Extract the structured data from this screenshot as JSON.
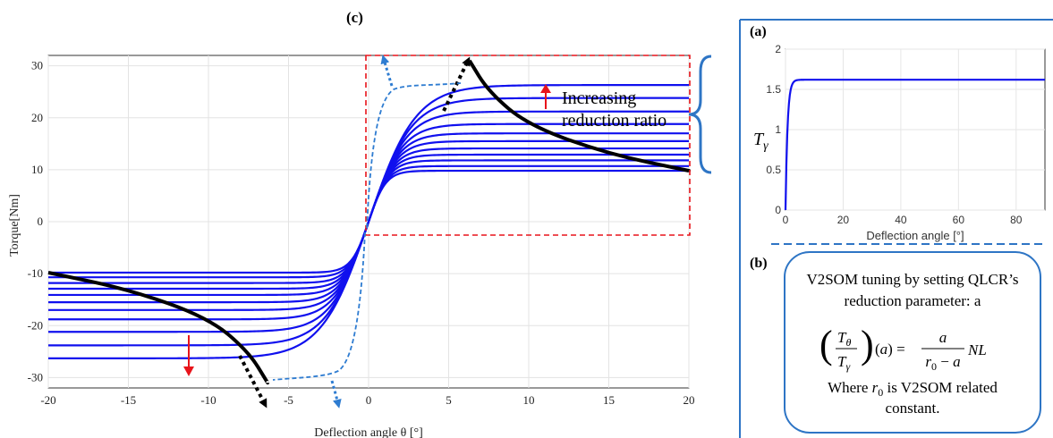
{
  "panel_c": {
    "label": "(c)",
    "annotation_line1": "Increasing",
    "annotation_line2": "reduction ratio"
  },
  "panel_a": {
    "label": "(a)"
  },
  "panel_b": {
    "label": "(b)",
    "line1": "V2SOM tuning by setting QLCR’s",
    "line2": "reduction parameter: a",
    "formula_tail": "NL",
    "where_prefix": "Where ",
    "where_suffix": " is V2SOM related",
    "last_line": "constant."
  },
  "colors": {
    "curve": "#1010ee",
    "envelope": "#000000",
    "dashed_blue": "#2e7cd1",
    "red": "#e8141b",
    "panel_border": "#2e75c5"
  },
  "chart_data": [
    {
      "type": "line",
      "title": "",
      "xlabel": "Deflection angle θ [°]",
      "ylabel": "Torque[Nm]",
      "xlim": [
        -20,
        20
      ],
      "ylim": [
        -32,
        32
      ],
      "xticks": [
        -20,
        -15,
        -10,
        -5,
        0,
        5,
        10,
        15,
        20
      ],
      "yticks": [
        30,
        20,
        10,
        0,
        -10,
        -20,
        -30
      ],
      "grid": true,
      "series_saturation_torque": [
        9.8,
        10.7,
        11.8,
        12.9,
        14.1,
        15.5,
        17.0,
        18.8,
        21.2,
        23.8,
        26.3
      ],
      "envelope_points": [
        [
          -20,
          -9.8
        ],
        [
          -15,
          -13.0
        ],
        [
          -10,
          -18.5
        ],
        [
          -7.5,
          -25.0
        ],
        [
          -6.3,
          -31.0
        ],
        [
          6.3,
          31.0
        ],
        [
          7.5,
          25.0
        ],
        [
          10,
          18.5
        ],
        [
          15,
          13.0
        ],
        [
          20,
          9.8
        ]
      ]
    },
    {
      "type": "line",
      "title": "",
      "xlabel": "Deflection angle [°]",
      "ylabel": "T_γ",
      "xlim": [
        0,
        90
      ],
      "ylim": [
        0,
        2
      ],
      "xticks": [
        0,
        20,
        40,
        60,
        80
      ],
      "yticks": [
        2,
        1.5,
        1,
        0.5,
        0
      ],
      "saturation_value": 1.62
    }
  ]
}
